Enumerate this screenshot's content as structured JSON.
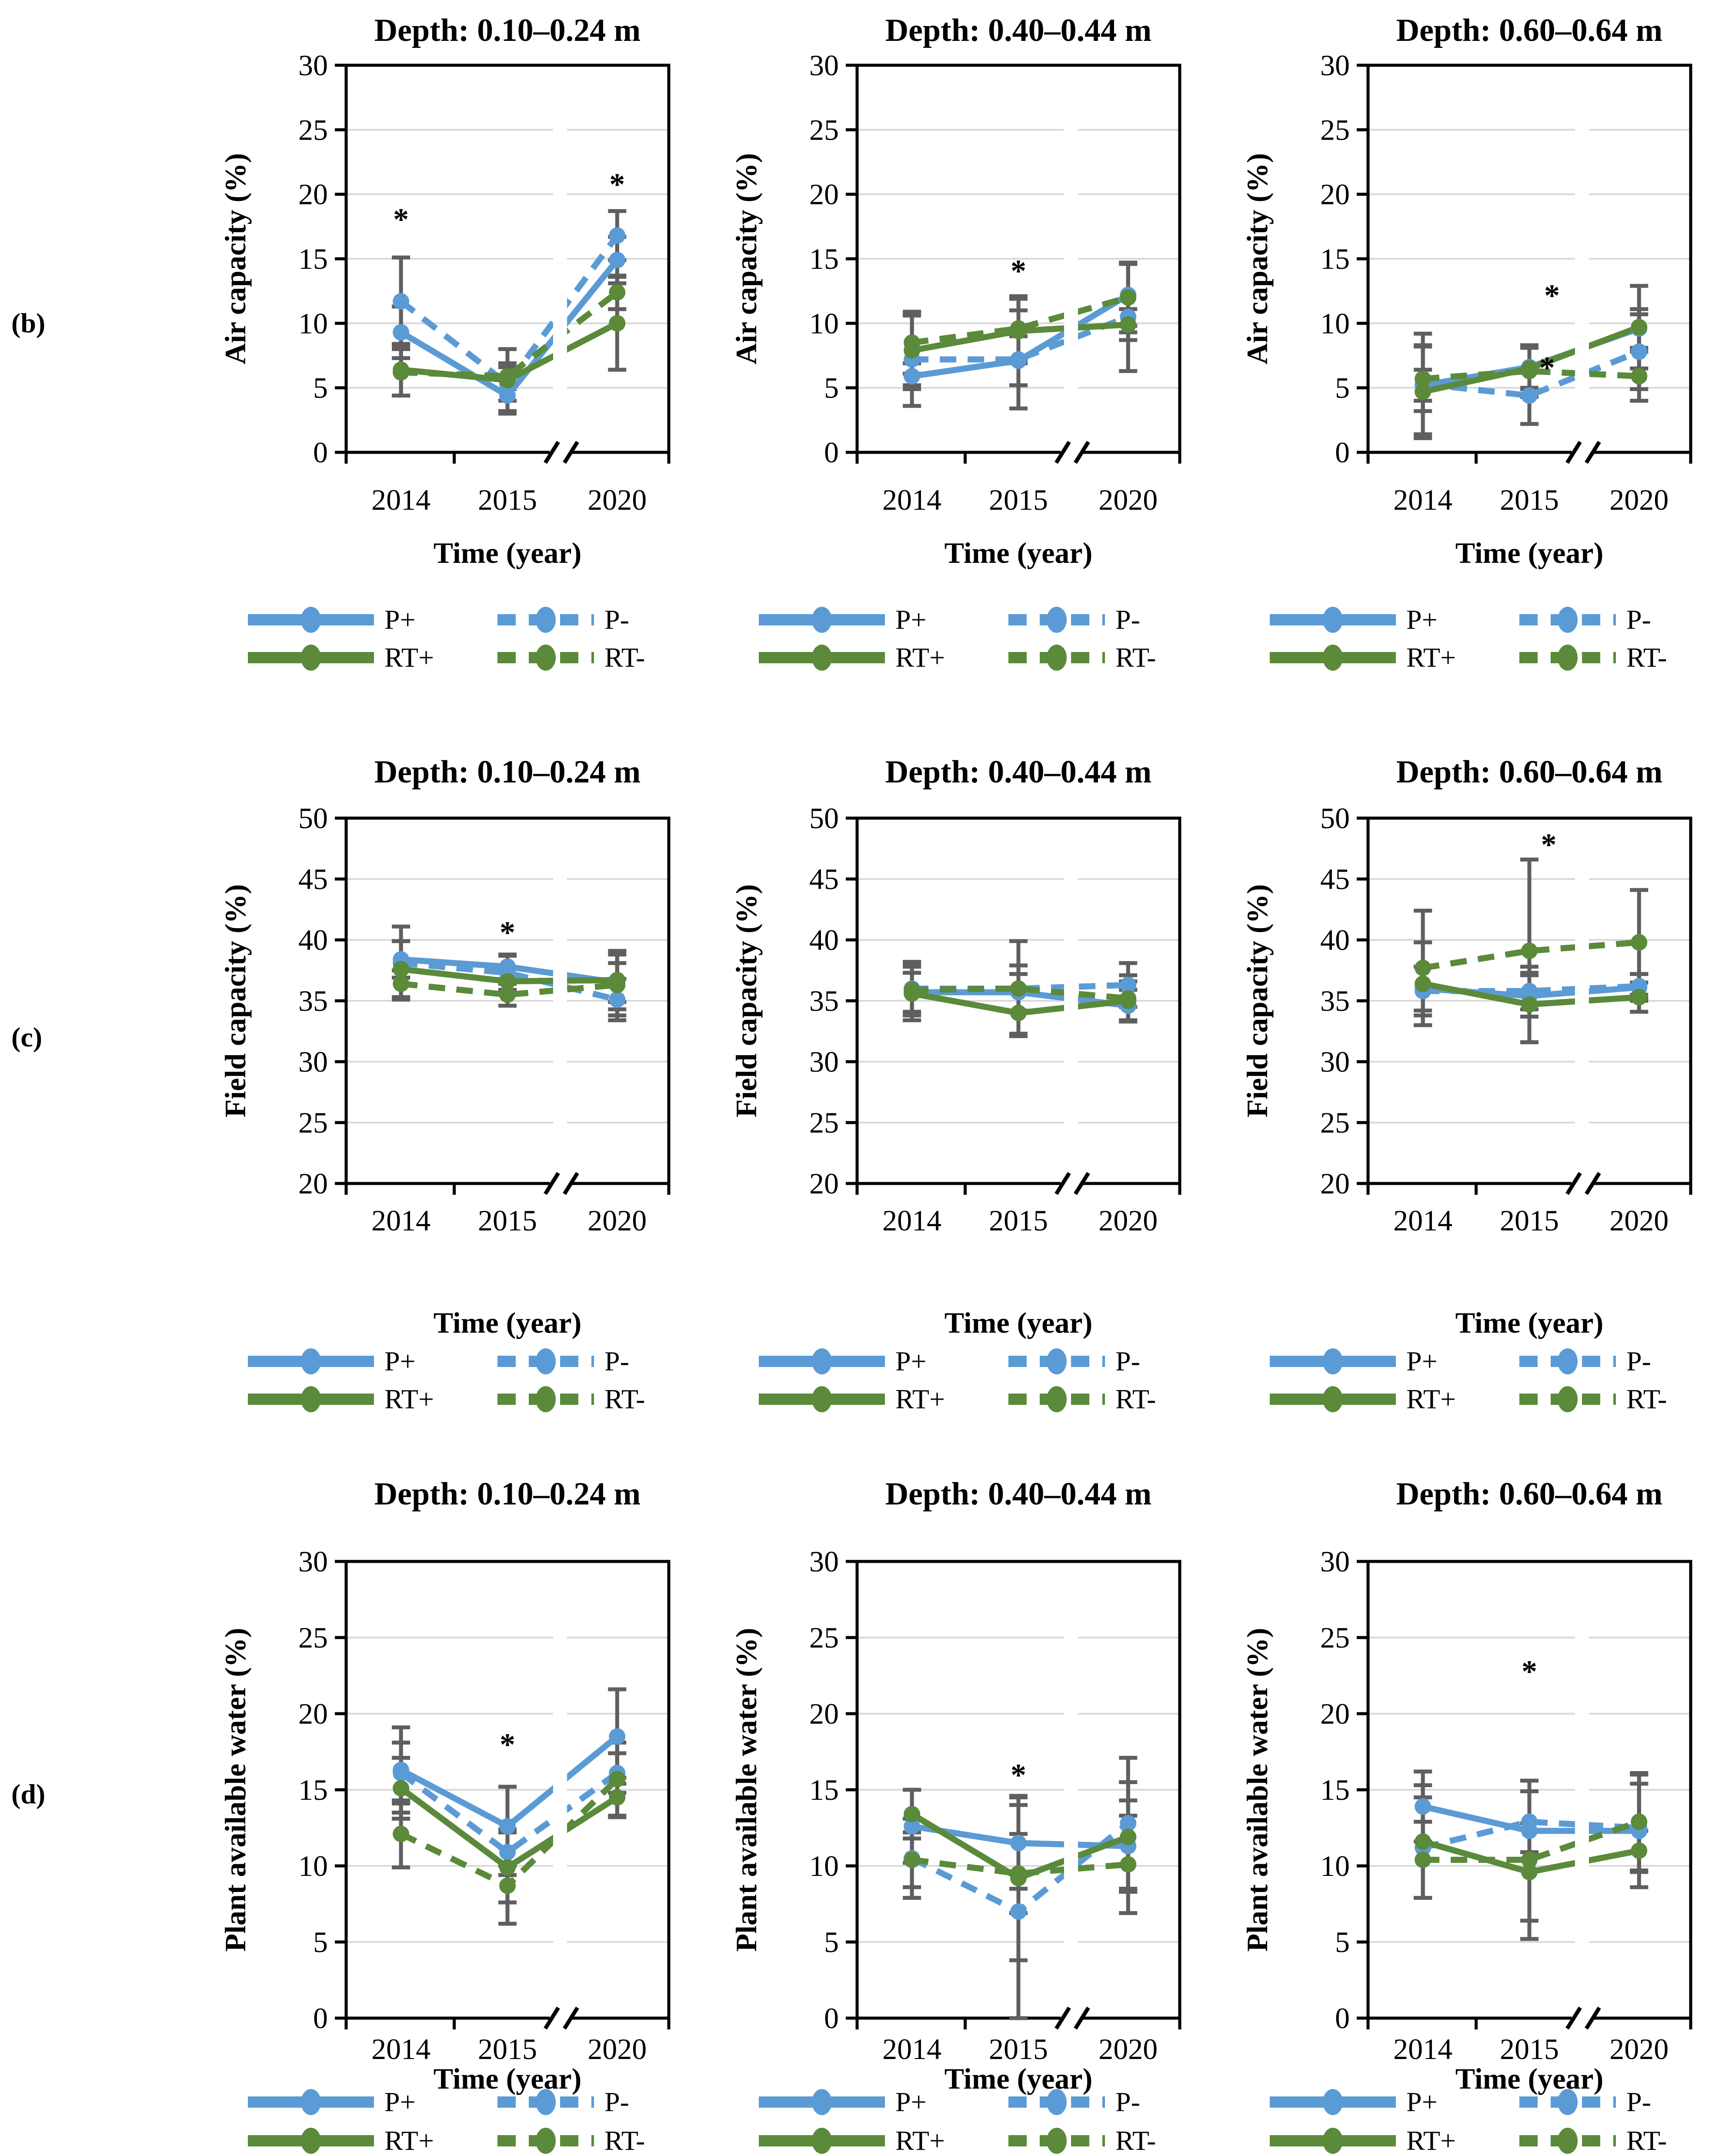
{
  "figure": {
    "row_labels": [
      "(b)",
      "(c)",
      "(d)"
    ],
    "x_axis_label": "Time (year)",
    "years": [
      "2014",
      "2015",
      "2020"
    ],
    "significance_marker": "*",
    "series_meta": [
      {
        "name": "P+",
        "color": "#5B9BD5",
        "dash": "solid"
      },
      {
        "name": "P-",
        "color": "#5B9BD5",
        "dash": "dashed"
      },
      {
        "name": "RT+",
        "color": "#5A8A3A",
        "dash": "solid"
      },
      {
        "name": "RT-",
        "color": "#5A8A3A",
        "dash": "dashed"
      }
    ],
    "colors": {
      "blue": "#5B9BD5",
      "green": "#5A8A3A",
      "error_bar": "#5F5F5F",
      "gridline": "#D9D9D9",
      "axis": "#000000"
    },
    "legend_position": "below each panel",
    "grid": "horizontal only"
  },
  "chart_data": [
    {
      "id": "b1",
      "row": "b",
      "type": "line",
      "title": "Depth: 0.10–0.24 m",
      "ylabel": "Air capacity (%)",
      "xlabel": "Time (year)",
      "ylim": [
        0,
        30
      ],
      "yticks": [
        0,
        5,
        10,
        15,
        20,
        25,
        30
      ],
      "x_categories": [
        "2014",
        "2015",
        "2020"
      ],
      "series": [
        {
          "name": "P+",
          "values": [
            9.3,
            4.4,
            14.9
          ],
          "err": [
            2.0,
            1.4,
            1.8
          ]
        },
        {
          "name": "P-",
          "values": [
            11.7,
            5.3,
            16.8
          ],
          "err": [
            3.4,
            1.3,
            1.9
          ]
        },
        {
          "name": "RT+",
          "values": [
            6.4,
            5.6,
            10.0
          ],
          "err": [
            2.0,
            2.4,
            3.6
          ]
        },
        {
          "name": "RT-",
          "values": [
            6.2,
            5.9,
            12.4
          ],
          "err": [
            1.8,
            1.0,
            1.3
          ]
        }
      ],
      "asterisks": [
        {
          "x": "2014",
          "y": 18.8
        },
        {
          "x": "2020",
          "y": 21.5
        }
      ]
    },
    {
      "id": "b2",
      "row": "b",
      "type": "line",
      "title": "Depth: 0.40–0.44 m",
      "ylabel": "Air capacity (%)",
      "xlabel": "Time (year)",
      "ylim": [
        0,
        30
      ],
      "yticks": [
        0,
        5,
        10,
        15,
        20,
        25,
        30
      ],
      "x_categories": [
        "2014",
        "2015",
        "2020"
      ],
      "series": [
        {
          "name": "P+",
          "values": [
            5.9,
            7.1,
            12.2
          ],
          "err": [
            1.0,
            1.9,
            2.4
          ]
        },
        {
          "name": "P-",
          "values": [
            7.2,
            7.2,
            10.5
          ],
          "err": [
            3.6,
            3.8,
            4.2
          ]
        },
        {
          "name": "RT+",
          "values": [
            7.9,
            9.4,
            9.9
          ],
          "err": [
            2.7,
            2.5,
            1.2
          ]
        },
        {
          "name": "RT-",
          "values": [
            8.5,
            9.6,
            12.0
          ],
          "err": [
            2.4,
            2.5,
            2.7
          ]
        }
      ],
      "asterisks": [
        {
          "x": "2015",
          "y": 14.8
        }
      ]
    },
    {
      "id": "b3",
      "row": "b",
      "type": "line",
      "title": "Depth: 0.60–0.64 m",
      "ylabel": "Air capacity (%)",
      "xlabel": "Time (year)",
      "ylim": [
        0,
        30
      ],
      "yticks": [
        0,
        5,
        10,
        15,
        20,
        25,
        30
      ],
      "x_categories": [
        "2014",
        "2015",
        "2020"
      ],
      "series": [
        {
          "name": "P+",
          "values": [
            5.2,
            6.6,
            9.6
          ],
          "err": [
            1.2,
            1.6,
            1.5
          ]
        },
        {
          "name": "P-",
          "values": [
            5.3,
            4.4,
            7.8
          ],
          "err": [
            3.9,
            2.2,
            2.9
          ]
        },
        {
          "name": "RT+",
          "values": [
            4.7,
            6.5,
            9.7
          ],
          "err": [
            3.6,
            1.6,
            3.2
          ]
        },
        {
          "name": "RT-",
          "values": [
            5.7,
            6.3,
            5.9
          ],
          "err": [
            2.5,
            2.0,
            1.9
          ]
        }
      ],
      "asterisks": [
        {
          "fx": 0.57,
          "y": 12.9
        },
        {
          "fx": 0.555,
          "y": 7.3
        }
      ]
    },
    {
      "id": "c1",
      "row": "c",
      "type": "line",
      "title": "Depth: 0.10–0.24 m",
      "ylabel": "Field capacity (%)",
      "xlabel": "Time (year)",
      "ylim": [
        20,
        50
      ],
      "yticks": [
        20,
        25,
        30,
        35,
        40,
        45,
        50
      ],
      "x_categories": [
        "2014",
        "2015",
        "2020"
      ],
      "series": [
        {
          "name": "P+",
          "values": [
            38.4,
            37.8,
            36.5
          ],
          "err": [
            1.5,
            1.0,
            1.6
          ]
        },
        {
          "name": "P-",
          "values": [
            38.1,
            37.3,
            35.1
          ],
          "err": [
            3.0,
            1.4,
            1.7
          ]
        },
        {
          "name": "RT+",
          "values": [
            37.6,
            36.6,
            36.7
          ],
          "err": [
            2.3,
            1.1,
            2.4
          ]
        },
        {
          "name": "RT-",
          "values": [
            36.4,
            35.5,
            36.3
          ],
          "err": [
            1.1,
            0.9,
            2.5
          ]
        }
      ],
      "asterisks": [
        {
          "x": "2015",
          "y": 41.4
        }
      ]
    },
    {
      "id": "c2",
      "row": "c",
      "type": "line",
      "title": "Depth: 0.40–0.44 m",
      "ylabel": "Field capacity (%)",
      "xlabel": "Time (year)",
      "ylim": [
        20,
        50
      ],
      "yticks": [
        20,
        25,
        30,
        35,
        40,
        45,
        50
      ],
      "x_categories": [
        "2014",
        "2015",
        "2020"
      ],
      "series": [
        {
          "name": "P+",
          "values": [
            35.7,
            35.7,
            34.6
          ],
          "err": [
            1.6,
            1.5,
            1.3
          ]
        },
        {
          "name": "P-",
          "values": [
            36.0,
            36.0,
            36.3
          ],
          "err": [
            2.2,
            1.9,
            1.8
          ]
        },
        {
          "name": "RT+",
          "values": [
            35.6,
            34.0,
            35.0
          ],
          "err": [
            2.2,
            1.7,
            1.6
          ]
        },
        {
          "name": "RT-",
          "values": [
            35.9,
            36.0,
            35.2
          ],
          "err": [
            2.0,
            3.9,
            1.9
          ]
        }
      ],
      "asterisks": []
    },
    {
      "id": "c3",
      "row": "c",
      "type": "line",
      "title": "Depth: 0.60–0.64 m",
      "ylabel": "Field capacity (%)",
      "xlabel": "Time (year)",
      "ylim": [
        20,
        50
      ],
      "yticks": [
        20,
        25,
        30,
        35,
        40,
        45,
        50
      ],
      "x_categories": [
        "2014",
        "2015",
        "2020"
      ],
      "series": [
        {
          "name": "P+",
          "values": [
            36.0,
            35.4,
            36.1
          ],
          "err": [
            1.8,
            1.7,
            1.1
          ]
        },
        {
          "name": "P-",
          "values": [
            35.8,
            35.8,
            36.2
          ],
          "err": [
            2.0,
            1.5,
            1.0
          ]
        },
        {
          "name": "RT+",
          "values": [
            36.4,
            34.7,
            35.3
          ],
          "err": [
            3.4,
            3.1,
            1.2
          ]
        },
        {
          "name": "RT-",
          "values": [
            37.7,
            39.1,
            39.8
          ],
          "err": [
            4.7,
            7.5,
            4.3
          ]
        }
      ],
      "asterisks": [
        {
          "fx": 0.56,
          "y": 48.6
        }
      ]
    },
    {
      "id": "d1",
      "row": "d",
      "type": "line",
      "title": "Depth: 0.10–0.24 m",
      "ylabel": "Plant available water (%)",
      "xlabel": "Time (year)",
      "ylim": [
        0,
        30
      ],
      "yticks": [
        0,
        5,
        10,
        15,
        20,
        25,
        30
      ],
      "x_categories": [
        "2014",
        "2015",
        "2020"
      ],
      "series": [
        {
          "name": "P+",
          "values": [
            16.3,
            12.6,
            18.5
          ],
          "err": [
            2.8,
            2.6,
            3.1
          ]
        },
        {
          "name": "P-",
          "values": [
            16.1,
            10.9,
            16.1
          ],
          "err": [
            2.0,
            1.5,
            1.3
          ]
        },
        {
          "name": "RT+",
          "values": [
            15.1,
            9.9,
            14.5
          ],
          "err": [
            2.0,
            2.3,
            1.3
          ]
        },
        {
          "name": "RT-",
          "values": [
            12.1,
            8.7,
            15.7
          ],
          "err": [
            2.2,
            2.5,
            2.4
          ]
        }
      ],
      "asterisks": [
        {
          "x": "2015",
          "y": 18.6
        }
      ]
    },
    {
      "id": "d2",
      "row": "d",
      "type": "line",
      "title": "Depth: 0.40–0.44 m",
      "ylabel": "Plant available water (%)",
      "xlabel": "Time (year)",
      "ylim": [
        0,
        30
      ],
      "yticks": [
        0,
        5,
        10,
        15,
        20,
        25,
        30
      ],
      "x_categories": [
        "2014",
        "2015",
        "2020"
      ],
      "series": [
        {
          "name": "P+",
          "values": [
            12.6,
            11.5,
            11.3
          ],
          "err": [
            2.4,
            3.0,
            3.0
          ]
        },
        {
          "name": "P-",
          "values": [
            10.5,
            7.0,
            12.8
          ],
          "err": [
            2.6,
            7.0,
            4.3
          ]
        },
        {
          "name": "RT+",
          "values": [
            13.4,
            9.2,
            11.9
          ],
          "err": [
            1.6,
            5.4,
            3.6
          ]
        },
        {
          "name": "RT-",
          "values": [
            10.4,
            9.5,
            10.1
          ],
          "err": [
            1.8,
            2.6,
            3.2
          ]
        }
      ],
      "asterisks": [
        {
          "x": "2015",
          "y": 16.6
        }
      ]
    },
    {
      "id": "d3",
      "row": "d",
      "type": "line",
      "title": "Depth: 0.60–0.64 m",
      "ylabel": "Plant available water (%)",
      "xlabel": "Time (year)",
      "ylim": [
        0,
        30
      ],
      "yticks": [
        0,
        5,
        10,
        15,
        20,
        25,
        30
      ],
      "x_categories": [
        "2014",
        "2015",
        "2020"
      ],
      "series": [
        {
          "name": "P+",
          "values": [
            13.9,
            12.3,
            12.3
          ],
          "err": [
            2.3,
            2.6,
            3.7
          ]
        },
        {
          "name": "P-",
          "values": [
            11.2,
            12.9,
            12.5
          ],
          "err": [
            3.3,
            2.0,
            2.9
          ]
        },
        {
          "name": "RT+",
          "values": [
            11.6,
            9.6,
            11.0
          ],
          "err": [
            3.7,
            3.2,
            1.3
          ]
        },
        {
          "name": "RT-",
          "values": [
            10.4,
            10.4,
            12.9
          ],
          "err": [
            2.5,
            5.2,
            3.2
          ]
        }
      ],
      "asterisks": [
        {
          "x": "2015",
          "y": 23.4
        }
      ]
    }
  ]
}
